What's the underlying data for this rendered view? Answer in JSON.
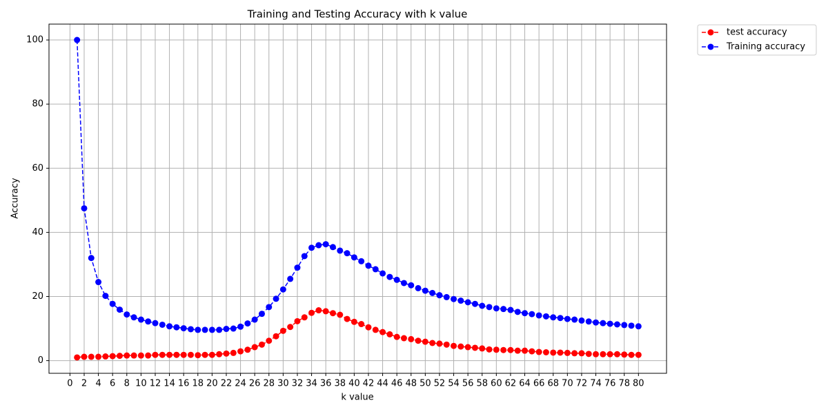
{
  "chart_data": {
    "type": "line",
    "title": "Training and Testing Accuracy with k value",
    "x_label": "k value",
    "y_label": "Accuracy",
    "x": [
      1,
      2,
      3,
      4,
      5,
      6,
      7,
      8,
      9,
      10,
      11,
      12,
      13,
      14,
      15,
      16,
      17,
      18,
      19,
      20,
      21,
      22,
      23,
      24,
      25,
      26,
      27,
      28,
      29,
      30,
      31,
      32,
      33,
      34,
      35,
      36,
      37,
      38,
      39,
      40,
      41,
      42,
      43,
      44,
      45,
      46,
      47,
      48,
      49,
      50,
      51,
      52,
      53,
      54,
      55,
      56,
      57,
      58,
      59,
      60,
      61,
      62,
      63,
      64,
      65,
      66,
      67,
      68,
      69,
      70,
      71,
      72,
      73,
      74,
      75,
      76,
      77,
      78,
      79,
      80
    ],
    "series": [
      {
        "name": "test accuracy",
        "color": "#ff0000",
        "values": [
          1,
          1.2,
          1.2,
          1.2,
          1.3,
          1.4,
          1.5,
          1.6,
          1.6,
          1.6,
          1.6,
          1.8,
          1.8,
          1.8,
          1.8,
          1.8,
          1.8,
          1.7,
          1.8,
          1.8,
          2.0,
          2.2,
          2.4,
          2.9,
          3.4,
          4.2,
          5.0,
          6.2,
          7.6,
          9.3,
          10.5,
          12.3,
          13.5,
          14.9,
          15.7,
          15.4,
          14.8,
          14.3,
          13.0,
          12.1,
          11.4,
          10.4,
          9.6,
          8.9,
          8.2,
          7.4,
          7.0,
          6.7,
          6.2,
          5.9,
          5.5,
          5.3,
          5.0,
          4.6,
          4.4,
          4.2,
          4.0,
          3.8,
          3.5,
          3.4,
          3.3,
          3.3,
          3.1,
          3.1,
          2.9,
          2.7,
          2.6,
          2.5,
          2.5,
          2.4,
          2.3,
          2.3,
          2.1,
          2.0,
          2.0,
          2.0,
          2.0,
          1.9,
          1.8,
          1.8
        ]
      },
      {
        "name": "Training accuracy",
        "color": "#0000ff",
        "values": [
          100,
          47.5,
          32,
          24.5,
          20.2,
          17.7,
          15.9,
          14.4,
          13.5,
          12.8,
          12.2,
          11.7,
          11.2,
          10.7,
          10.4,
          10.1,
          9.8,
          9.6,
          9.6,
          9.6,
          9.6,
          9.9,
          10.0,
          10.6,
          11.6,
          12.8,
          14.6,
          16.7,
          19.3,
          22.2,
          25.5,
          29,
          32.6,
          35.2,
          36,
          36.3,
          35.4,
          34.3,
          33.5,
          32.2,
          31,
          29.6,
          28.5,
          27.2,
          26.1,
          25.2,
          24.2,
          23.5,
          22.6,
          21.8,
          21.1,
          20.4,
          19.8,
          19.2,
          18.7,
          18.2,
          17.7,
          17.1,
          16.7,
          16.3,
          16.1,
          15.8,
          15.2,
          14.8,
          14.5,
          14.1,
          13.8,
          13.5,
          13.3,
          13.0,
          12.8,
          12.5,
          12.2,
          11.9,
          11.7,
          11.5,
          11.3,
          11.1,
          10.9,
          10.7
        ]
      }
    ],
    "xlim": [
      -2.95,
      83.95
    ],
    "xticks": [
      0,
      2,
      4,
      6,
      8,
      10,
      12,
      14,
      16,
      18,
      20,
      22,
      24,
      26,
      28,
      30,
      32,
      34,
      36,
      38,
      40,
      42,
      44,
      46,
      48,
      50,
      52,
      54,
      56,
      58,
      60,
      62,
      64,
      66,
      68,
      70,
      72,
      74,
      76,
      78,
      80
    ],
    "ylim": [
      -3.95,
      104.95
    ],
    "yticks": [
      0,
      20,
      40,
      60,
      80,
      100
    ],
    "grid": true,
    "line_style": "dashed",
    "marker": "circle",
    "legend": "outside upper right"
  }
}
